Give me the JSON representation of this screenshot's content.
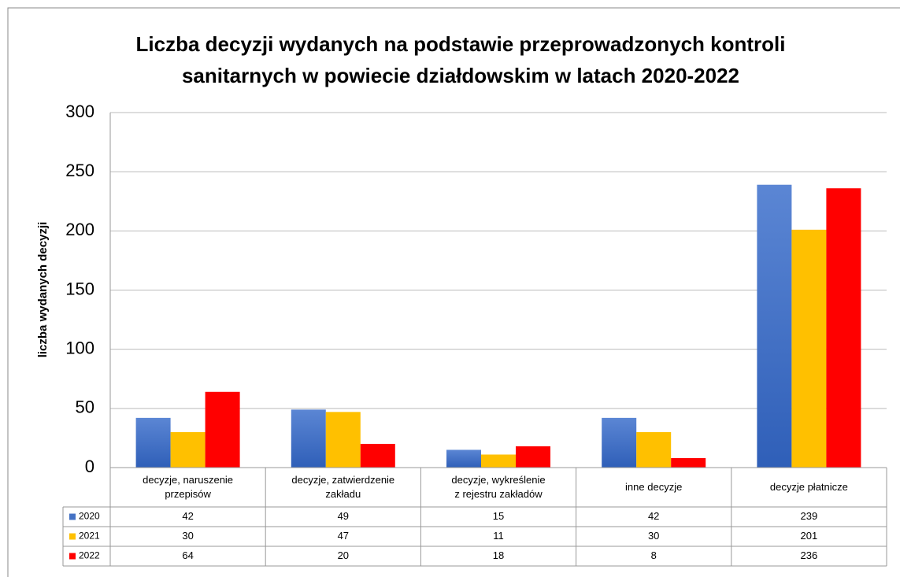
{
  "chart_data": {
    "type": "bar",
    "title": "Liczba decyzji wydanych na podstawie przeprowadzonych kontroli\nsanitarnych w powiecie działdowskim w latach 2020-2022",
    "y_label": "liczba wydanych decyzji",
    "categories": [
      "decyzje, naruszenie\nprzepisów",
      "decyzje, zatwierdzenie\nzakładu",
      "decyzje, wykreślenie\nz rejestru zakładów",
      "inne decyzje",
      "decyzje płatnicze"
    ],
    "series": [
      {
        "name": "2020",
        "color": "#4472c4",
        "values": [
          42,
          49,
          15,
          42,
          239
        ]
      },
      {
        "name": "2021",
        "color": "#ffc000",
        "values": [
          30,
          47,
          11,
          30,
          201
        ]
      },
      {
        "name": "2022",
        "color": "#ff0000",
        "values": [
          64,
          20,
          18,
          8,
          236
        ]
      }
    ],
    "ylim": [
      0,
      300
    ],
    "yticks": [
      0,
      50,
      100,
      150,
      200,
      250,
      300
    ],
    "grid": true,
    "data_table": true
  }
}
